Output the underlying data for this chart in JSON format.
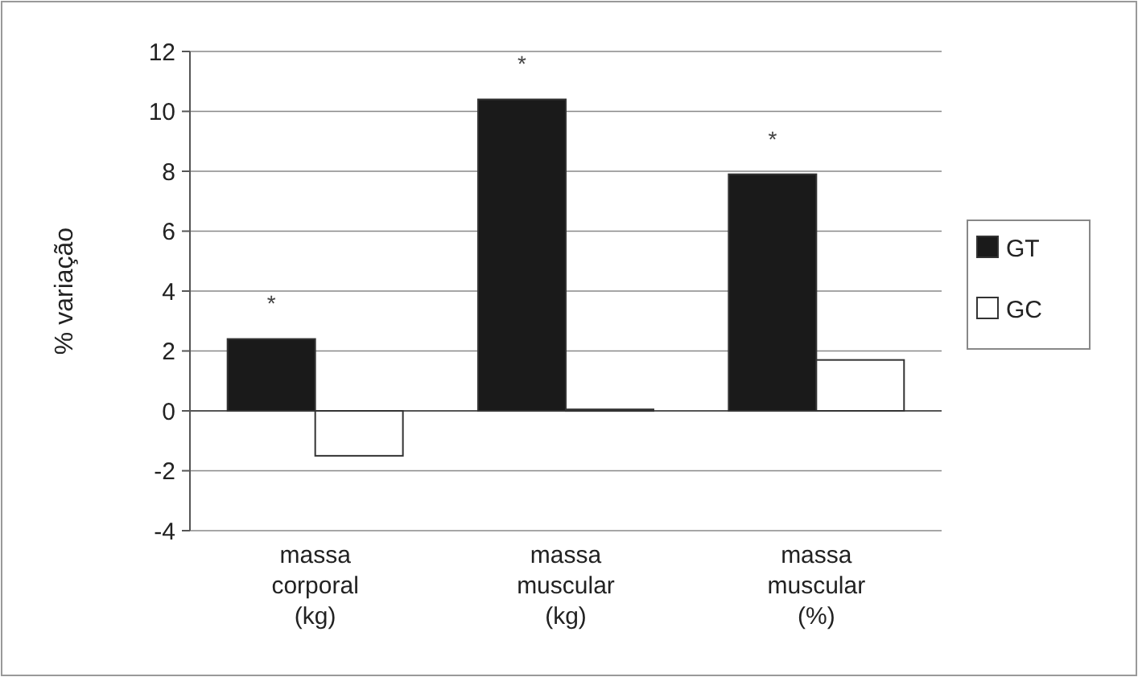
{
  "chart_data": {
    "type": "bar",
    "ylabel": "% variação",
    "categories": [
      "massa corporal (kg)",
      "massa muscular (kg)",
      "massa muscular (%)"
    ],
    "series": [
      {
        "name": "GT",
        "color": "#1a1a1a",
        "values": [
          2.4,
          10.4,
          7.9
        ]
      },
      {
        "name": "GC",
        "color": "#ffffff",
        "values": [
          -1.5,
          0.05,
          1.7
        ]
      }
    ],
    "ylim": [
      -4,
      12
    ],
    "yticks": [
      -4,
      -2,
      0,
      2,
      4,
      6,
      8,
      10,
      12
    ],
    "grid": "y",
    "legend": "right",
    "annotations": [
      "*",
      "*",
      "*"
    ]
  }
}
